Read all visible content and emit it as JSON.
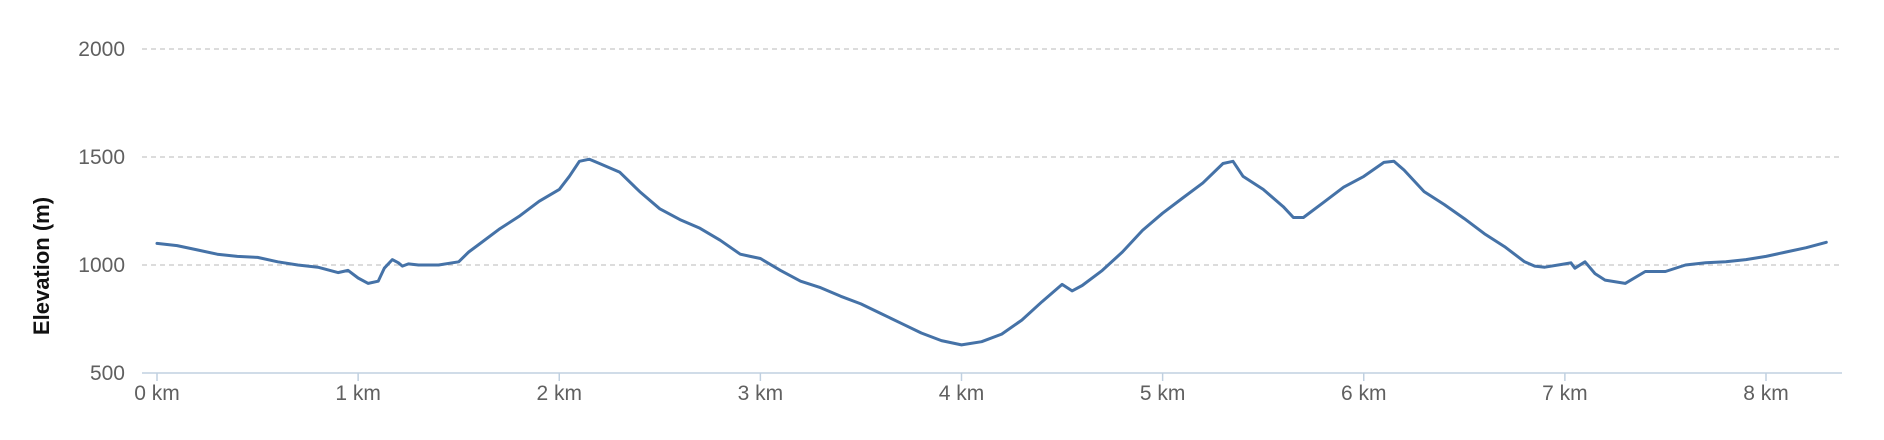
{
  "chart_data": {
    "type": "line",
    "title": "",
    "xlabel": "",
    "ylabel": "Elevation (m)",
    "x_unit": "km",
    "xlim": [
      0,
      8.4
    ],
    "ylim": [
      500,
      2000
    ],
    "x_ticks": [
      0,
      1,
      2,
      3,
      4,
      5,
      6,
      7,
      8
    ],
    "x_tick_labels": [
      "0 km",
      "1 km",
      "2 km",
      "3 km",
      "4 km",
      "5 km",
      "6 km",
      "7 km",
      "8 km"
    ],
    "y_ticks": [
      500,
      1000,
      1500,
      2000
    ],
    "y_tick_labels": [
      "500",
      "1000",
      "1500",
      "2000"
    ],
    "grid": true,
    "legend": "none",
    "colors": {
      "line": "#4572a7",
      "grid": "#c8c8c8",
      "axis": "#c0d0e0",
      "background": "#ffffff"
    },
    "series": [
      {
        "x": [
          0,
          0.1,
          0.2,
          0.3,
          0.4,
          0.5,
          0.6,
          0.7,
          0.8,
          0.9,
          0.95,
          1.0,
          1.05,
          1.1,
          1.13,
          1.17,
          1.2,
          1.22,
          1.25,
          1.3,
          1.4,
          1.5,
          1.55,
          1.6,
          1.7,
          1.8,
          1.9,
          2.0,
          2.05,
          2.1,
          2.15,
          2.2,
          2.3,
          2.4,
          2.5,
          2.6,
          2.7,
          2.8,
          2.9,
          2.95,
          3.0,
          3.1,
          3.2,
          3.3,
          3.4,
          3.5,
          3.6,
          3.7,
          3.8,
          3.9,
          4.0,
          4.1,
          4.2,
          4.3,
          4.4,
          4.5,
          4.55,
          4.6,
          4.7,
          4.8,
          4.9,
          5.0,
          5.1,
          5.2,
          5.3,
          5.35,
          5.4,
          5.5,
          5.6,
          5.65,
          5.7,
          5.8,
          5.9,
          6.0,
          6.1,
          6.15,
          6.2,
          6.3,
          6.4,
          6.5,
          6.6,
          6.7,
          6.8,
          6.85,
          6.9,
          7.0,
          7.03,
          7.05,
          7.1,
          7.15,
          7.2,
          7.3,
          7.4,
          7.5,
          7.6,
          7.7,
          7.8,
          7.9,
          8.0,
          8.1,
          8.2,
          8.3
        ],
        "y": [
          1100,
          1090,
          1070,
          1050,
          1040,
          1035,
          1015,
          1000,
          990,
          965,
          975,
          940,
          915,
          925,
          985,
          1025,
          1010,
          995,
          1005,
          1000,
          1000,
          1015,
          1060,
          1095,
          1165,
          1225,
          1295,
          1350,
          1410,
          1480,
          1490,
          1470,
          1430,
          1340,
          1260,
          1210,
          1170,
          1115,
          1050,
          1040,
          1030,
          975,
          925,
          895,
          855,
          820,
          775,
          730,
          685,
          650,
          630,
          645,
          680,
          745,
          830,
          910,
          880,
          905,
          975,
          1060,
          1160,
          1240,
          1310,
          1380,
          1470,
          1480,
          1410,
          1350,
          1270,
          1220,
          1220,
          1290,
          1360,
          1410,
          1475,
          1480,
          1440,
          1340,
          1280,
          1215,
          1145,
          1085,
          1015,
          995,
          990,
          1005,
          1010,
          985,
          1015,
          960,
          930,
          915,
          970,
          970,
          1000,
          1010,
          1015,
          1025,
          1040,
          1060,
          1080,
          1105
        ]
      }
    ]
  }
}
